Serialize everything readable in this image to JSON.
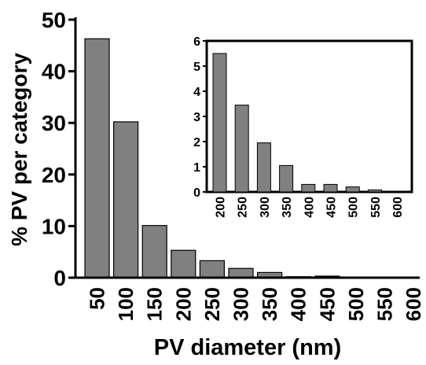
{
  "chart_data": [
    {
      "type": "bar",
      "title": "",
      "xlabel": "PV diameter (nm)",
      "ylabel": "% PV per category",
      "categories": [
        "50",
        "100",
        "150",
        "200",
        "250",
        "300",
        "350",
        "400",
        "450",
        "500",
        "550",
        "600"
      ],
      "values": [
        46.3,
        30.2,
        10.1,
        5.3,
        3.3,
        1.8,
        1.0,
        0.2,
        0.3,
        0.05,
        0.05,
        0.0
      ],
      "ylim": [
        0,
        50
      ],
      "yticks": [
        0,
        10,
        20,
        30,
        40,
        50
      ],
      "bar_color": "#808080",
      "grid": false
    },
    {
      "type": "bar",
      "inset": true,
      "title": "",
      "xlabel": "",
      "ylabel": "",
      "categories": [
        "200",
        "250",
        "300",
        "350",
        "400",
        "450",
        "500",
        "550",
        "600"
      ],
      "values": [
        5.5,
        3.45,
        1.95,
        1.05,
        0.3,
        0.3,
        0.2,
        0.08,
        0.0
      ],
      "ylim": [
        0,
        6
      ],
      "yticks": [
        0,
        1,
        2,
        3,
        4,
        5,
        6
      ],
      "bar_color": "#808080",
      "grid": false
    }
  ]
}
